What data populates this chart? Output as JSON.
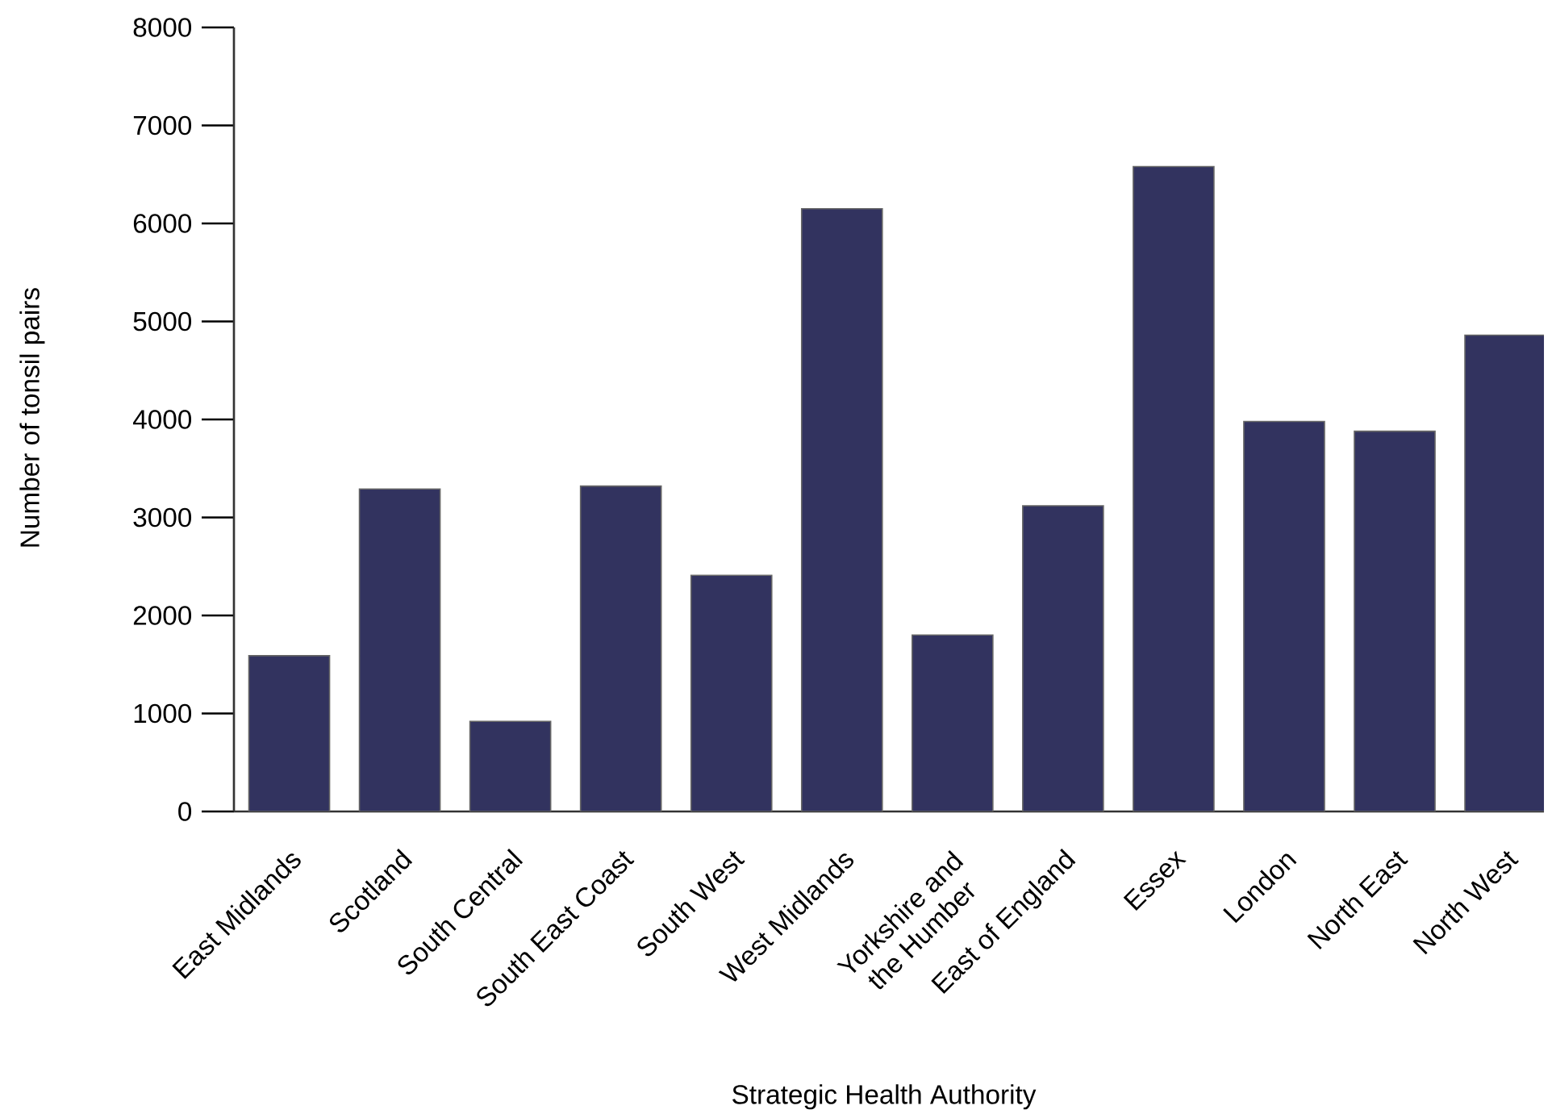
{
  "chart_data": {
    "type": "bar",
    "xlabel": "Strategic Health Authority",
    "ylabel": "Number of tonsil pairs",
    "categories": [
      "East Midlands",
      "Scotland",
      "South Central",
      "South East Coast",
      "South West",
      "West Midlands",
      "Yorkshire and the Humber",
      "East of England",
      "Essex",
      "London",
      "North East",
      "North West"
    ],
    "values": [
      1590,
      3290,
      920,
      3320,
      2410,
      6150,
      1800,
      3120,
      6580,
      3980,
      3880,
      4860
    ],
    "color": "#32335f",
    "ylim": [
      0,
      8000
    ],
    "yticks": [
      0,
      1000,
      2000,
      3000,
      4000,
      5000,
      6000,
      7000,
      8000
    ]
  }
}
